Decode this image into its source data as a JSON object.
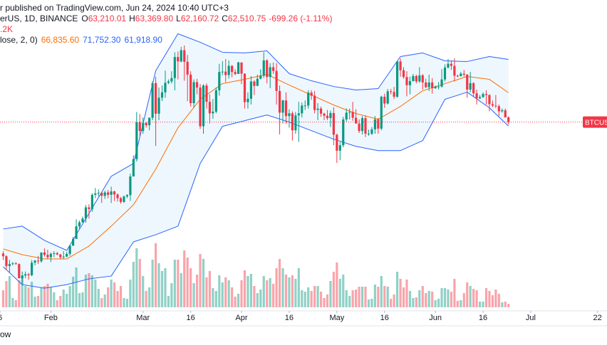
{
  "header": {
    "line1": "r published on TradingView.com, Jun 24, 2024 10:40 UTC+3",
    "symbol": "erUS, 1D, BINANCE",
    "ohlc": [
      {
        "key": "O",
        "value": "63,210.01"
      },
      {
        "key": "H",
        "value": "63,369.80"
      },
      {
        "key": "L",
        "value": "62,160.72"
      },
      {
        "key": "C",
        "value": "62,510.75"
      }
    ],
    "change": "-699.26 (-1.11%)",
    "change_color": "#f23645",
    "volume": ".2K",
    "indicator": "lose, 2, 0)",
    "indicator_values": [
      {
        "value": "66,835.60",
        "color": "#ff6d00"
      },
      {
        "value": "71,752.30",
        "color": "#2962ff"
      },
      {
        "value": "61,918.90",
        "color": "#2962ff"
      }
    ]
  },
  "chart_data": {
    "type": "candlestick",
    "x": [
      "2024-01-17",
      "2024-01-18",
      "2024-01-19",
      "2024-01-20",
      "2024-01-21",
      "2024-01-22",
      "2024-01-23",
      "2024-01-24",
      "2024-01-25",
      "2024-01-26",
      "2024-01-27",
      "2024-01-28",
      "2024-01-29",
      "2024-01-30",
      "2024-01-31",
      "2024-02-01",
      "2024-02-02",
      "2024-02-03",
      "2024-02-04",
      "2024-02-05",
      "2024-02-06",
      "2024-02-07",
      "2024-02-08",
      "2024-02-09",
      "2024-02-10",
      "2024-02-11",
      "2024-02-12",
      "2024-02-13",
      "2024-02-14",
      "2024-02-15",
      "2024-02-16",
      "2024-02-17",
      "2024-02-18",
      "2024-02-19",
      "2024-02-20",
      "2024-02-21",
      "2024-02-22",
      "2024-02-23",
      "2024-02-24",
      "2024-02-25",
      "2024-02-26",
      "2024-02-27",
      "2024-02-28",
      "2024-02-29",
      "2024-03-01",
      "2024-03-02",
      "2024-03-03",
      "2024-03-04",
      "2024-03-05",
      "2024-03-06",
      "2024-03-07",
      "2024-03-08",
      "2024-03-09",
      "2024-03-10",
      "2024-03-11",
      "2024-03-12",
      "2024-03-13",
      "2024-03-14",
      "2024-03-15",
      "2024-03-16",
      "2024-03-17",
      "2024-03-18",
      "2024-03-19",
      "2024-03-20",
      "2024-03-21",
      "2024-03-22",
      "2024-03-23",
      "2024-03-24",
      "2024-03-25",
      "2024-03-26",
      "2024-03-27",
      "2024-03-28",
      "2024-03-29",
      "2024-03-30",
      "2024-03-31",
      "2024-04-01",
      "2024-04-02",
      "2024-04-03",
      "2024-04-04",
      "2024-04-05",
      "2024-04-06",
      "2024-04-07",
      "2024-04-08",
      "2024-04-09",
      "2024-04-10",
      "2024-04-11",
      "2024-04-12",
      "2024-04-13",
      "2024-04-14",
      "2024-04-15",
      "2024-04-16",
      "2024-04-17",
      "2024-04-18",
      "2024-04-19",
      "2024-04-20",
      "2024-04-21",
      "2024-04-22",
      "2024-04-23",
      "2024-04-24",
      "2024-04-25",
      "2024-04-26",
      "2024-04-27",
      "2024-04-28",
      "2024-04-29",
      "2024-04-30",
      "2024-05-01",
      "2024-05-02",
      "2024-05-03",
      "2024-05-04",
      "2024-05-05",
      "2024-05-06",
      "2024-05-07",
      "2024-05-08",
      "2024-05-09",
      "2024-05-10",
      "2024-05-11",
      "2024-05-12",
      "2024-05-13",
      "2024-05-14",
      "2024-05-15",
      "2024-05-16",
      "2024-05-17",
      "2024-05-18",
      "2024-05-19",
      "2024-05-20",
      "2024-05-21",
      "2024-05-22",
      "2024-05-23",
      "2024-05-24",
      "2024-05-25",
      "2024-05-26",
      "2024-05-27",
      "2024-05-28",
      "2024-05-29",
      "2024-05-30",
      "2024-05-31",
      "2024-06-01",
      "2024-06-02",
      "2024-06-03",
      "2024-06-04",
      "2024-06-05",
      "2024-06-06",
      "2024-06-07",
      "2024-06-08",
      "2024-06-09",
      "2024-06-10",
      "2024-06-11",
      "2024-06-12",
      "2024-06-13",
      "2024-06-14",
      "2024-06-15",
      "2024-06-16",
      "2024-06-17",
      "2024-06-18",
      "2024-06-19",
      "2024-06-20",
      "2024-06-21",
      "2024-06-22",
      "2024-06-23",
      "2024-06-24"
    ],
    "open": [
      43150,
      42750,
      41300,
      41600,
      41700,
      41600,
      39500,
      39900,
      40100,
      39950,
      41800,
      42100,
      42000,
      43300,
      42950,
      42600,
      43100,
      43200,
      43000,
      42600,
      42700,
      43100,
      44300,
      45300,
      47150,
      47750,
      48300,
      49950,
      49700,
      51800,
      52000,
      52100,
      51650,
      52150,
      51800,
      52300,
      51850,
      51300,
      50750,
      51550,
      51750,
      54500,
      57050,
      62500,
      61200,
      62400,
      62050,
      63150,
      68250,
      63750,
      66100,
      66900,
      68300,
      68500,
      69000,
      72100,
      71450,
      73100,
      71400,
      69500,
      65300,
      68400,
      67600,
      61900,
      67900,
      65500,
      63800,
      64050,
      67200,
      69900,
      69950,
      69450,
      70800,
      69900,
      69600,
      71300,
      69650,
      65450,
      65950,
      68500,
      67850,
      68900,
      69350,
      71600,
      69150,
      70600,
      70050,
      67100,
      63900,
      65700,
      63400,
      63800,
      61300,
      63500,
      63800,
      64950,
      64950,
      66850,
      66400,
      64300,
      64500,
      63750,
      63450,
      63100,
      63850,
      60650,
      58300,
      59100,
      62900,
      63900,
      64000,
      63150,
      62300,
      61200,
      63100,
      60800,
      60800,
      61450,
      62900,
      61550,
      66250,
      65250,
      67050,
      66950,
      66250,
      71450,
      70150,
      69150,
      67950,
      68550,
      69300,
      68500,
      69400,
      68350,
      67650,
      68350,
      67500,
      67750,
      67750,
      68800,
      70550,
      71100,
      70800,
      69350,
      69300,
      69650,
      69500,
      67300,
      68250,
      66750,
      66000,
      66200,
      66650,
      66500,
      65150,
      64950,
      64850,
      64100,
      64250,
      63210.01
    ],
    "high": [
      43500,
      42900,
      42200,
      41900,
      41900,
      41700,
      40500,
      40500,
      40300,
      42200,
      42200,
      42800,
      43300,
      43900,
      43700,
      43300,
      43500,
      43400,
      43100,
      43500,
      43400,
      44400,
      45600,
      48200,
      48000,
      48600,
      50300,
      50400,
      52000,
      52800,
      52600,
      52200,
      52400,
      52500,
      53000,
      52400,
      52000,
      51500,
      51700,
      51900,
      54900,
      57600,
      64000,
      63700,
      63200,
      62500,
      63200,
      68500,
      69200,
      67600,
      67900,
      70100,
      68800,
      70000,
      72800,
      72900,
      73600,
      73800,
      72400,
      70000,
      68800,
      68900,
      68100,
      68100,
      68200,
      66600,
      65900,
      67600,
      71100,
      71500,
      71800,
      71600,
      70900,
      70300,
      71400,
      71300,
      69700,
      66900,
      69300,
      68700,
      69500,
      70300,
      72800,
      71800,
      71200,
      71300,
      71200,
      67900,
      65800,
      66900,
      64400,
      64100,
      64000,
      65500,
      65400,
      65700,
      67200,
      67200,
      67100,
      65300,
      64800,
      63900,
      64300,
      64200,
      64700,
      60800,
      59600,
      63300,
      64500,
      64500,
      65500,
      64400,
      62900,
      63400,
      63500,
      61400,
      61800,
      63400,
      63100,
      66400,
      66700,
      67400,
      67400,
      67700,
      71500,
      71900,
      70600,
      70000,
      69200,
      69600,
      69500,
      70600,
      69600,
      68900,
      69500,
      69000,
      67900,
      68400,
      70300,
      71000,
      71800,
      71600,
      71900,
      69500,
      69900,
      70200,
      69600,
      69900,
      68400,
      67300,
      66500,
      66900,
      67200,
      66600,
      65700,
      66500,
      65100,
      64500,
      64500,
      63369.8
    ],
    "low": [
      42200,
      40700,
      40300,
      41400,
      41500,
      39500,
      38600,
      39500,
      39300,
      39800,
      41400,
      41600,
      41800,
      42700,
      42300,
      41900,
      42600,
      42900,
      42300,
      42300,
      42600,
      42800,
      44300,
      45300,
      46800,
      47700,
      47700,
      48300,
      49300,
      51300,
      51600,
      50600,
      51200,
      51300,
      50600,
      50900,
      50800,
      50500,
      50600,
      51300,
      50900,
      54500,
      56700,
      60400,
      60800,
      61700,
      61300,
      62800,
      59000,
      62800,
      65600,
      66100,
      68100,
      68200,
      67200,
      68800,
      71300,
      68600,
      65600,
      64800,
      64600,
      66600,
      61500,
      60800,
      64500,
      62300,
      63000,
      63800,
      66400,
      69400,
      68400,
      68900,
      69100,
      69400,
      69600,
      68100,
      64500,
      64500,
      65100,
      66500,
      67800,
      68800,
      69000,
      68200,
      67500,
      69600,
      65100,
      60700,
      62300,
      62300,
      61700,
      59800,
      60800,
      59600,
      63200,
      64300,
      64500,
      65800,
      63800,
      62800,
      63300,
      62800,
      62800,
      61800,
      59100,
      56500,
      56900,
      58800,
      62600,
      62900,
      62700,
      62300,
      60900,
      60700,
      60300,
      60500,
      60600,
      60800,
      60800,
      61300,
      64600,
      65100,
      66600,
      65900,
      66100,
      69200,
      68900,
      66300,
      66600,
      68500,
      68200,
      68300,
      67300,
      67500,
      67100,
      66700,
      67400,
      67300,
      67600,
      68500,
      70400,
      70200,
      68500,
      69100,
      69200,
      69200,
      66100,
      66900,
      66300,
      65100,
      65900,
      66100,
      65100,
      64100,
      64700,
      64600,
      63400,
      63900,
      63200,
      62160.72
    ],
    "close": [
      42750,
      41300,
      41600,
      41700,
      41600,
      39500,
      39900,
      40100,
      39950,
      41800,
      42100,
      42000,
      43300,
      42950,
      42600,
      43100,
      43200,
      43000,
      42600,
      42700,
      43100,
      44300,
      45300,
      47150,
      47750,
      48300,
      49950,
      49700,
      51800,
      52000,
      52100,
      51650,
      52150,
      51800,
      52300,
      51850,
      51300,
      50750,
      51550,
      51750,
      54500,
      57050,
      62500,
      61200,
      62400,
      62050,
      63150,
      68250,
      63750,
      66100,
      66900,
      68300,
      68500,
      69000,
      72100,
      71450,
      73100,
      71400,
      69500,
      65300,
      68400,
      67600,
      61900,
      67900,
      65500,
      63800,
      64050,
      67200,
      69900,
      69950,
      69450,
      70800,
      69900,
      69600,
      71300,
      69650,
      65450,
      65950,
      68500,
      67850,
      68900,
      69350,
      71600,
      69150,
      70600,
      70050,
      67100,
      63900,
      65700,
      63400,
      63800,
      61300,
      63500,
      63800,
      64950,
      64950,
      66850,
      66400,
      64300,
      64500,
      63750,
      63450,
      63100,
      63850,
      60650,
      58300,
      59100,
      62900,
      63900,
      64000,
      63150,
      62300,
      61200,
      63100,
      60800,
      60800,
      61450,
      62900,
      61550,
      66250,
      65250,
      67050,
      66950,
      66250,
      71450,
      70150,
      69150,
      67950,
      68550,
      69300,
      68500,
      69400,
      68350,
      67650,
      68350,
      67500,
      67750,
      67750,
      68800,
      70550,
      71100,
      70800,
      69350,
      69300,
      69650,
      69500,
      67300,
      68250,
      66750,
      66000,
      66200,
      66650,
      66500,
      65150,
      64950,
      64850,
      64100,
      64250,
      63200,
      62510.75
    ],
    "volume": [
      24,
      37,
      44,
      13,
      10,
      38,
      45,
      30,
      28,
      36,
      15,
      16,
      28,
      30,
      33,
      28,
      21,
      10,
      16,
      25,
      19,
      30,
      43,
      56,
      20,
      21,
      46,
      48,
      45,
      39,
      26,
      13,
      18,
      28,
      39,
      35,
      23,
      30,
      13,
      12,
      39,
      64,
      83,
      68,
      44,
      23,
      28,
      67,
      90,
      62,
      51,
      55,
      16,
      34,
      67,
      67,
      48,
      80,
      70,
      55,
      34,
      46,
      75,
      68,
      42,
      51,
      27,
      23,
      45,
      35,
      42,
      38,
      28,
      15,
      19,
      38,
      52,
      44,
      47,
      30,
      20,
      25,
      44,
      38,
      41,
      33,
      55,
      68,
      55,
      46,
      42,
      45,
      40,
      55,
      24,
      22,
      28,
      23,
      30,
      30,
      22,
      13,
      18,
      37,
      50,
      63,
      40,
      46,
      24,
      16,
      24,
      25,
      29,
      29,
      29,
      11,
      12,
      32,
      29,
      44,
      30,
      29,
      12,
      18,
      50,
      40,
      28,
      39,
      23,
      13,
      14,
      24,
      30,
      20,
      23,
      22,
      10,
      12,
      27,
      27,
      25,
      22,
      40,
      9,
      10,
      20,
      35,
      30,
      26,
      24,
      8,
      8,
      27,
      23,
      17,
      25,
      19,
      7,
      8,
      5
    ],
    "up_color": "#089981",
    "down_color": "#f23645",
    "xlim": [
      "2024-01-16",
      "2024-07-25"
    ],
    "xticks": [
      {
        "value": "2024-01-16",
        "label": "6"
      },
      {
        "value": "2024-02-01",
        "label": "Feb"
      },
      {
        "value": "2024-03-01",
        "label": "Mar"
      },
      {
        "value": "2024-03-16",
        "label": "16"
      },
      {
        "value": "2024-04-01",
        "label": "Apr"
      },
      {
        "value": "2024-04-16",
        "label": "16"
      },
      {
        "value": "2024-05-01",
        "label": "May"
      },
      {
        "value": "2024-05-16",
        "label": "16"
      },
      {
        "value": "2024-06-01",
        "label": "Jun"
      },
      {
        "value": "2024-06-16",
        "label": "16"
      },
      {
        "value": "2024-07-01",
        "label": "Jul"
      },
      {
        "value": "2024-07-22",
        "label": "22"
      }
    ],
    "ylim": [
      32500,
      80500
    ],
    "y2lim": [
      0,
      250
    ],
    "bands_x": [
      "2024-01-17",
      "2024-01-23",
      "2024-01-30",
      "2024-02-06",
      "2024-02-13",
      "2024-02-20",
      "2024-02-27",
      "2024-03-05",
      "2024-03-12",
      "2024-03-19",
      "2024-03-26",
      "2024-04-02",
      "2024-04-09",
      "2024-04-16",
      "2024-04-23",
      "2024-04-30",
      "2024-05-07",
      "2024-05-14",
      "2024-05-21",
      "2024-05-28",
      "2024-06-04",
      "2024-06-11",
      "2024-06-18",
      "2024-06-24"
    ],
    "bands": [
      {
        "color": "#ff6d00",
        "values": [
          43820,
          42980,
          42350,
          42350,
          44240,
          47180,
          50330,
          55580,
          61670,
          65870,
          68180,
          68810,
          69550,
          67970,
          66500,
          65030,
          63770,
          62930,
          64820,
          67130,
          68180,
          69230,
          68810,
          66835.6
        ]
      },
      {
        "color": "#2962ff",
        "values": [
          46760,
          47180,
          45080,
          43610,
          49070,
          54530,
          56420,
          70070,
          75530,
          74270,
          72800,
          72700,
          73010,
          69650,
          68600,
          67760,
          67240,
          67450,
          72170,
          72700,
          71540,
          71440,
          72170,
          71752.3
        ]
      },
      {
        "color": "#2962ff",
        "values": [
          41200,
          38570,
          38040,
          38570,
          39410,
          39830,
          44870,
          45920,
          47180,
          56420,
          61880,
          62720,
          63560,
          62510,
          61250,
          59990,
          58940,
          58310,
          58310,
          59780,
          65870,
          66920,
          64610,
          61918.9
        ]
      }
    ],
    "band_fill": "rgba(33,150,243,0.08)",
    "last_price_label": "BTCUSD",
    "watermark": "ow"
  }
}
